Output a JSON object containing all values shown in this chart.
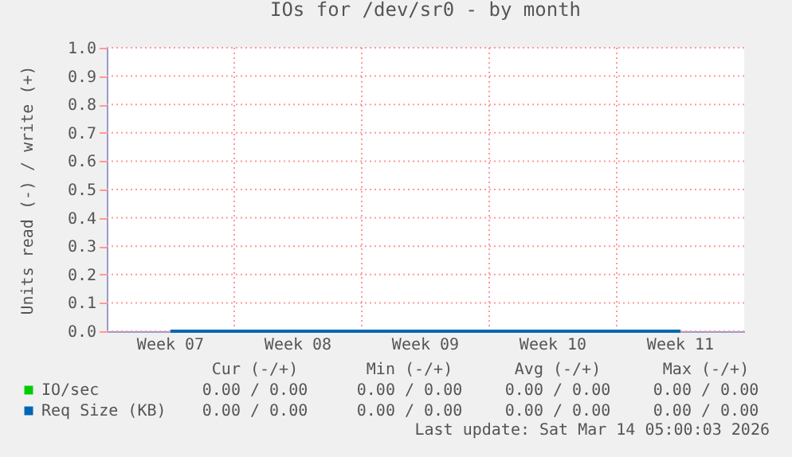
{
  "chart_data": {
    "type": "line",
    "title": "IOs for /dev/sr0 - by month",
    "ylabel": "Units read (-) / write (+)",
    "categories": [
      "Week 07",
      "Week 08",
      "Week 09",
      "Week 10",
      "Week 11"
    ],
    "series": [
      {
        "name": "IO/sec",
        "color": "#00cc00",
        "values": [
          null,
          null,
          null,
          null,
          null
        ]
      },
      {
        "name": "Req Size (KB)",
        "color": "#0066b3",
        "values": [
          0,
          0,
          0,
          0,
          0
        ]
      }
    ],
    "ylim": [
      0,
      1.0
    ],
    "yticks": [
      {
        "value": 0,
        "label": "0.0"
      },
      {
        "value": 0.1,
        "label": "0.1"
      },
      {
        "value": 0.2,
        "label": "0.2"
      },
      {
        "value": 0.3,
        "label": "0.3"
      },
      {
        "value": 0.4,
        "label": "0.4"
      },
      {
        "value": 0.5,
        "label": "0.5"
      },
      {
        "value": 0.6,
        "label": "0.6"
      },
      {
        "value": 0.7,
        "label": "0.7"
      },
      {
        "value": 0.8,
        "label": "0.8"
      },
      {
        "value": 0.9,
        "label": "0.9"
      },
      {
        "value": 1.0,
        "label": "1.0"
      }
    ],
    "grid": true,
    "legend": "bottom",
    "marker": "none",
    "line_style": "solid",
    "annotations": [
      "Cur (-/+)",
      "Min (-/+)",
      "Avg (-/+)",
      "Max (-/+)",
      "0.00 / 0.00",
      "0.00 / 0.00",
      "0.00 / 0.00",
      "0.00 / 0.00",
      "0.00 / 0.00",
      "0.00 / 0.00",
      "0.00 / 0.00",
      "0.00 / 0.00",
      "Last update: Sat Mar 14 05:00:03 2026"
    ]
  }
}
